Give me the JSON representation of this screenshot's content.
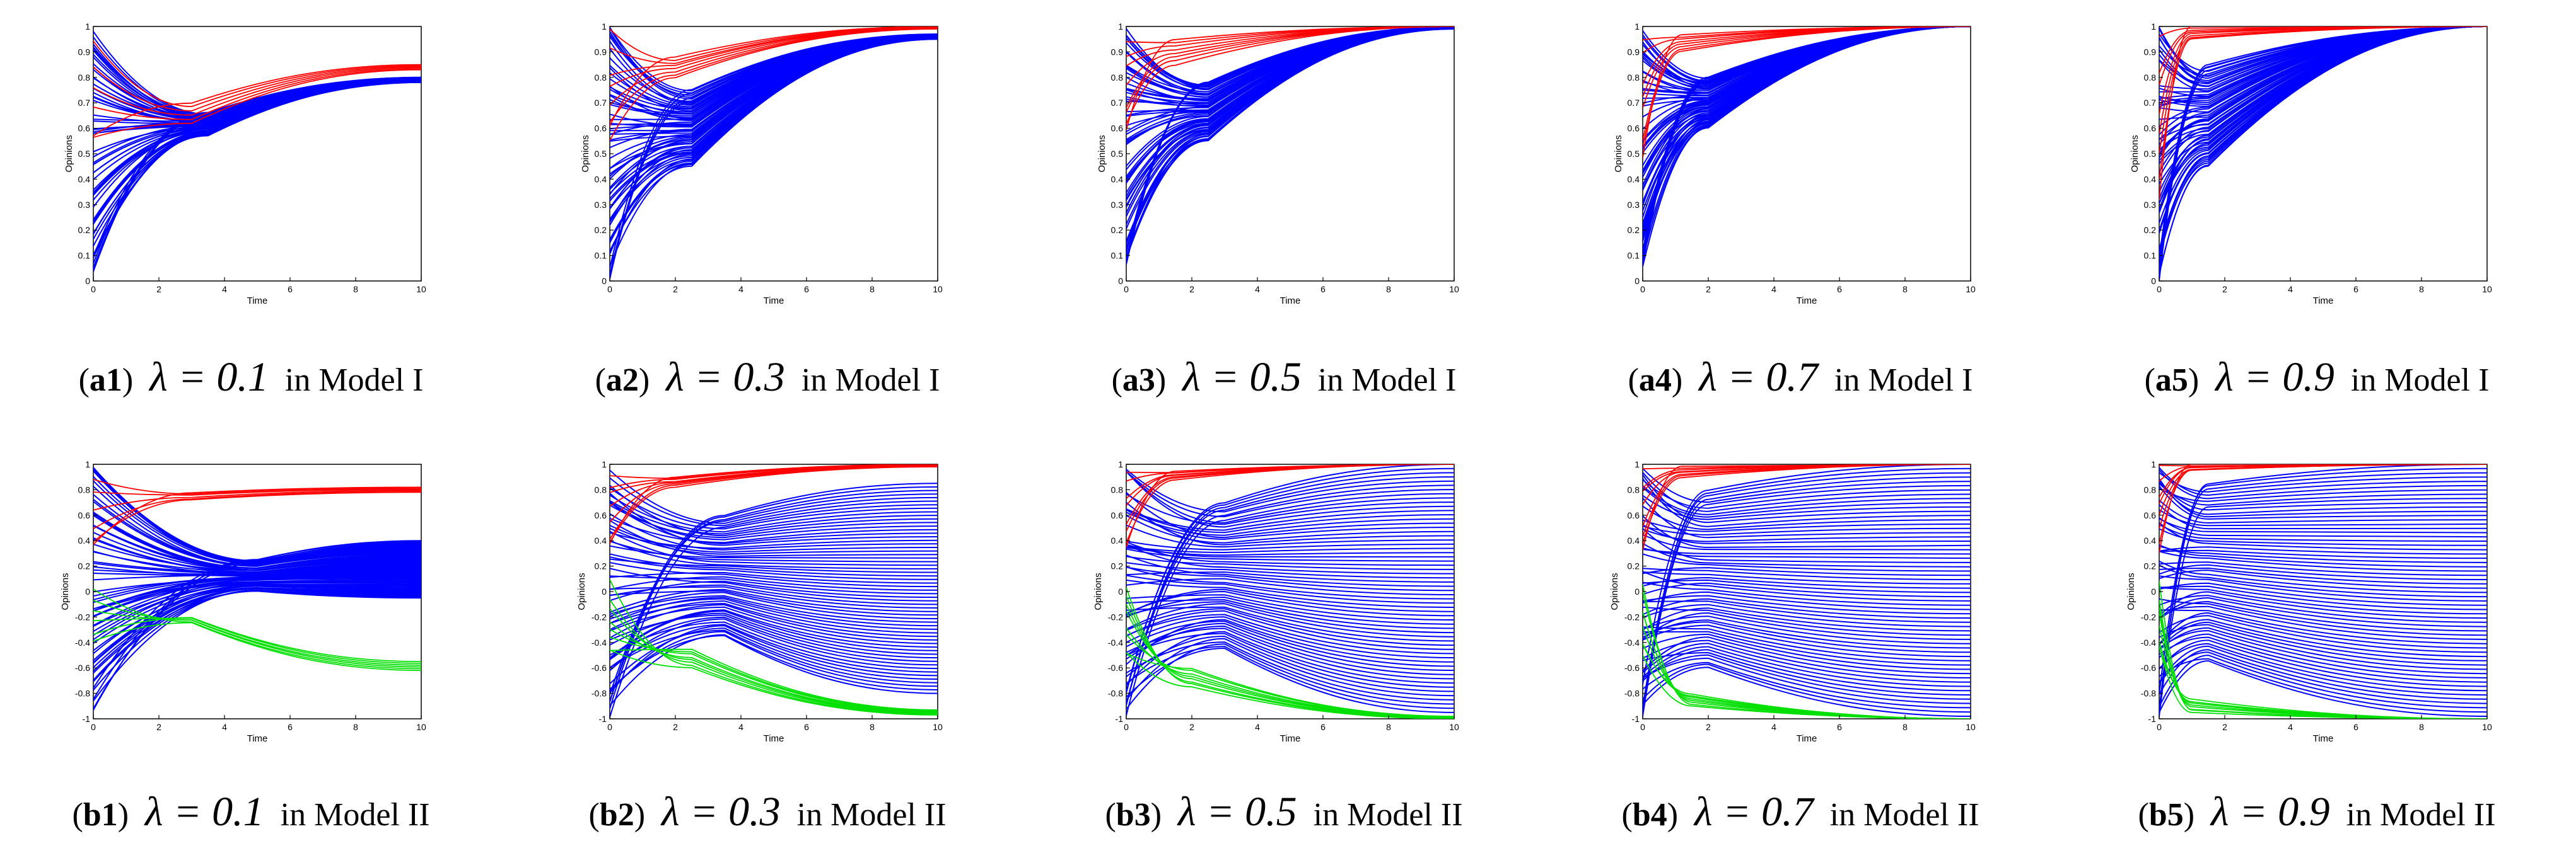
{
  "figure": {
    "layout": "2 rows x 5 columns of opinion-dynamics line plots with captions",
    "colors": {
      "background": "#ffffff",
      "axis": "#000000",
      "series_red": "#ff0000",
      "series_blue": "#0000ff",
      "series_green": "#00e000"
    }
  },
  "chart_data": [
    {
      "id": "a1",
      "type": "line",
      "model": "Model I",
      "caption": {
        "tag": "a1",
        "lambda": "λ = 0.1",
        "suffix": "in Model I"
      },
      "xlabel": "Time",
      "ylabel": "Opinions",
      "xlim": [
        0,
        10
      ],
      "ylim": [
        0,
        1
      ],
      "xticks": [
        "0",
        "2",
        "4",
        "6",
        "8",
        "10"
      ],
      "yticks": [
        "0",
        "0.1",
        "0.2",
        "0.3",
        "0.4",
        "0.5",
        "0.6",
        "0.7",
        "0.8",
        "0.9",
        "1"
      ],
      "series": [
        {
          "name": "red",
          "color": "#ff0000",
          "count": 6,
          "t": [
            0,
            3,
            10
          ],
          "start": [
            0.56,
            1.0
          ],
          "mid": [
            0.62,
            0.7
          ],
          "end": [
            0.83,
            0.85
          ]
        },
        {
          "name": "blue",
          "color": "#0000ff",
          "count": 60,
          "t": [
            0,
            3.5,
            10
          ],
          "start": [
            0.02,
            1.0
          ],
          "mid": [
            0.57,
            0.66
          ],
          "end": [
            0.78,
            0.8
          ]
        }
      ]
    },
    {
      "id": "a2",
      "type": "line",
      "model": "Model I",
      "caption": {
        "tag": "a2",
        "lambda": "λ = 0.3",
        "suffix": "in Model I"
      },
      "xlabel": "Time",
      "ylabel": "Opinions",
      "xlim": [
        0,
        10
      ],
      "ylim": [
        0,
        1
      ],
      "xticks": [
        "0",
        "2",
        "4",
        "6",
        "8",
        "10"
      ],
      "yticks": [
        "0",
        "0.1",
        "0.2",
        "0.3",
        "0.4",
        "0.5",
        "0.6",
        "0.7",
        "0.8",
        "0.9",
        "1"
      ],
      "series": [
        {
          "name": "red",
          "color": "#ff0000",
          "count": 8,
          "t": [
            0,
            2,
            10
          ],
          "start": [
            0.55,
            1.0
          ],
          "mid": [
            0.8,
            0.88
          ],
          "end": [
            0.99,
            1.0
          ]
        },
        {
          "name": "blue",
          "color": "#0000ff",
          "count": 60,
          "t": [
            0,
            2.5,
            10
          ],
          "start": [
            0.0,
            1.0
          ],
          "mid": [
            0.45,
            0.75
          ],
          "end": [
            0.95,
            0.97
          ]
        }
      ]
    },
    {
      "id": "a3",
      "type": "line",
      "model": "Model I",
      "caption": {
        "tag": "a3",
        "lambda": "λ = 0.5",
        "suffix": "in Model I"
      },
      "xlabel": "Time",
      "ylabel": "Opinions",
      "xlim": [
        0,
        10
      ],
      "ylim": [
        0,
        1
      ],
      "xticks": [
        "0",
        "2",
        "4",
        "6",
        "8",
        "10"
      ],
      "yticks": [
        "0",
        "0.1",
        "0.2",
        "0.3",
        "0.4",
        "0.5",
        "0.6",
        "0.7",
        "0.8",
        "0.9",
        "1"
      ],
      "series": [
        {
          "name": "red",
          "color": "#ff0000",
          "count": 8,
          "t": [
            0,
            1.5,
            10
          ],
          "start": [
            0.55,
            1.0
          ],
          "mid": [
            0.85,
            0.95
          ],
          "end": [
            1.0,
            1.0
          ]
        },
        {
          "name": "blue",
          "color": "#0000ff",
          "count": 60,
          "t": [
            0,
            2.5,
            10
          ],
          "start": [
            0.0,
            1.0
          ],
          "mid": [
            0.55,
            0.78
          ],
          "end": [
            0.99,
            1.0
          ]
        }
      ]
    },
    {
      "id": "a4",
      "type": "line",
      "model": "Model I",
      "caption": {
        "tag": "a4",
        "lambda": "λ = 0.7",
        "suffix": "in Model I"
      },
      "xlabel": "Time",
      "ylabel": "Opinions",
      "xlim": [
        0,
        10
      ],
      "ylim": [
        0,
        1
      ],
      "xticks": [
        "0",
        "2",
        "4",
        "6",
        "8",
        "10"
      ],
      "yticks": [
        "0",
        "0.1",
        "0.2",
        "0.3",
        "0.4",
        "0.5",
        "0.6",
        "0.7",
        "0.8",
        "0.9",
        "1"
      ],
      "series": [
        {
          "name": "red",
          "color": "#ff0000",
          "count": 8,
          "t": [
            0,
            1.2,
            10
          ],
          "start": [
            0.45,
            1.0
          ],
          "mid": [
            0.9,
            0.97
          ],
          "end": [
            1.0,
            1.0
          ]
        },
        {
          "name": "blue",
          "color": "#0000ff",
          "count": 60,
          "t": [
            0,
            2.0,
            10
          ],
          "start": [
            0.0,
            1.0
          ],
          "mid": [
            0.6,
            0.8
          ],
          "end": [
            1.0,
            1.0
          ]
        }
      ]
    },
    {
      "id": "a5",
      "type": "line",
      "model": "Model I",
      "caption": {
        "tag": "a5",
        "lambda": "λ = 0.9",
        "suffix": "in Model I"
      },
      "xlabel": "Time",
      "ylabel": "Opinions",
      "xlim": [
        0,
        10
      ],
      "ylim": [
        0,
        1
      ],
      "xticks": [
        "0",
        "2",
        "4",
        "6",
        "8",
        "10"
      ],
      "yticks": [
        "0",
        "0.1",
        "0.2",
        "0.3",
        "0.4",
        "0.5",
        "0.6",
        "0.7",
        "0.8",
        "0.9",
        "1"
      ],
      "series": [
        {
          "name": "red",
          "color": "#ff0000",
          "count": 8,
          "t": [
            0,
            1.0,
            10
          ],
          "start": [
            0.3,
            1.0
          ],
          "mid": [
            0.95,
            1.0
          ],
          "end": [
            1.0,
            1.0
          ]
        },
        {
          "name": "blue",
          "color": "#0000ff",
          "count": 60,
          "t": [
            0,
            1.5,
            10
          ],
          "start": [
            0.0,
            1.0
          ],
          "mid": [
            0.45,
            0.85
          ],
          "end": [
            1.0,
            1.0
          ]
        }
      ]
    },
    {
      "id": "b1",
      "type": "line",
      "model": "Model II",
      "caption": {
        "tag": "b1",
        "lambda": "λ = 0.1",
        "suffix": "in Model II"
      },
      "xlabel": "Time",
      "ylabel": "Opinions",
      "xlim": [
        0,
        10
      ],
      "ylim": [
        -1,
        1
      ],
      "xticks": [
        "0",
        "2",
        "4",
        "6",
        "8",
        "10"
      ],
      "yticks": [
        "-1",
        "-0.8",
        "-0.6",
        "-0.4",
        "-0.2",
        "0",
        "0.2",
        "0.4",
        "0.6",
        "0.8",
        "1"
      ],
      "series": [
        {
          "name": "red",
          "color": "#ff0000",
          "count": 6,
          "t": [
            0,
            3,
            10
          ],
          "start": [
            0.3,
            1.0
          ],
          "mid": [
            0.72,
            0.78
          ],
          "end": [
            0.78,
            0.82
          ]
        },
        {
          "name": "blue",
          "color": "#0000ff",
          "count": 60,
          "t": [
            0,
            5,
            10
          ],
          "start": [
            -1.0,
            1.0
          ],
          "mid": [
            0.0,
            0.25
          ],
          "end": [
            -0.05,
            0.4
          ]
        },
        {
          "name": "green",
          "color": "#00e000",
          "count": 6,
          "t": [
            0,
            3,
            10
          ],
          "start": [
            -0.4,
            0.1
          ],
          "mid": [
            -0.2,
            -0.25
          ],
          "end": [
            -0.55,
            -0.62
          ]
        }
      ]
    },
    {
      "id": "b2",
      "type": "line",
      "model": "Model II",
      "caption": {
        "tag": "b2",
        "lambda": "λ = 0.3",
        "suffix": "in Model II"
      },
      "xlabel": "Time",
      "ylabel": "Opinions",
      "xlim": [
        0,
        10
      ],
      "ylim": [
        -1,
        1
      ],
      "xticks": [
        "0",
        "2",
        "4",
        "6",
        "8",
        "10"
      ],
      "yticks": [
        "-1",
        "-0.8",
        "-0.6",
        "-0.4",
        "-0.2",
        "0",
        "0.2",
        "0.4",
        "0.6",
        "0.8",
        "1"
      ],
      "series": [
        {
          "name": "red",
          "color": "#ff0000",
          "count": 8,
          "t": [
            0,
            2,
            10
          ],
          "start": [
            0.3,
            1.0
          ],
          "mid": [
            0.82,
            0.9
          ],
          "end": [
            0.98,
            1.0
          ]
        },
        {
          "name": "blue",
          "color": "#0000ff",
          "count": 60,
          "t": [
            0,
            3.5,
            10
          ],
          "start": [
            -1.0,
            1.0
          ],
          "mid": [
            -0.35,
            0.6
          ],
          "end": [
            -0.8,
            0.85
          ]
        },
        {
          "name": "green",
          "color": "#00e000",
          "count": 8,
          "t": [
            0,
            2.5,
            10
          ],
          "start": [
            -0.5,
            0.1
          ],
          "mid": [
            -0.45,
            -0.6
          ],
          "end": [
            -0.93,
            -0.97
          ]
        }
      ]
    },
    {
      "id": "b3",
      "type": "line",
      "model": "Model II",
      "caption": {
        "tag": "b3",
        "lambda": "λ = 0.5",
        "suffix": "in Model II"
      },
      "xlabel": "Time",
      "ylabel": "Opinions",
      "xlim": [
        0,
        10
      ],
      "ylim": [
        -1,
        1
      ],
      "xticks": [
        "0",
        "2",
        "4",
        "6",
        "8",
        "10"
      ],
      "yticks": [
        "-1",
        "-0.8",
        "-0.6",
        "-0.4",
        "-0.2",
        "0",
        "0.2",
        "0.4",
        "0.6",
        "0.8",
        "1"
      ],
      "series": [
        {
          "name": "red",
          "color": "#ff0000",
          "count": 8,
          "t": [
            0,
            1.5,
            10
          ],
          "start": [
            0.3,
            1.0
          ],
          "mid": [
            0.88,
            0.95
          ],
          "end": [
            1.0,
            1.0
          ]
        },
        {
          "name": "blue",
          "color": "#0000ff",
          "count": 60,
          "t": [
            0,
            3,
            10
          ],
          "start": [
            -1.0,
            1.0
          ],
          "mid": [
            -0.45,
            0.7
          ],
          "end": [
            -0.95,
            1.0
          ]
        },
        {
          "name": "green",
          "color": "#00e000",
          "count": 8,
          "t": [
            0,
            2,
            10
          ],
          "start": [
            -0.5,
            0.1
          ],
          "mid": [
            -0.6,
            -0.75
          ],
          "end": [
            -0.98,
            -1.0
          ]
        }
      ]
    },
    {
      "id": "b4",
      "type": "line",
      "model": "Model II",
      "caption": {
        "tag": "b4",
        "lambda": "λ = 0.7",
        "suffix": "in Model II"
      },
      "xlabel": "Time",
      "ylabel": "Opinions",
      "xlim": [
        0,
        10
      ],
      "ylim": [
        -1,
        1
      ],
      "xticks": [
        "0",
        "2",
        "4",
        "6",
        "8",
        "10"
      ],
      "yticks": [
        "-1",
        "-0.8",
        "-0.6",
        "-0.4",
        "-0.2",
        "0",
        "0.2",
        "0.4",
        "0.6",
        "0.8",
        "1"
      ],
      "series": [
        {
          "name": "red",
          "color": "#ff0000",
          "count": 8,
          "t": [
            0,
            1.2,
            10
          ],
          "start": [
            0.3,
            1.0
          ],
          "mid": [
            0.9,
            0.98
          ],
          "end": [
            1.0,
            1.0
          ]
        },
        {
          "name": "blue",
          "color": "#0000ff",
          "count": 60,
          "t": [
            0,
            2,
            10
          ],
          "start": [
            -1.0,
            1.0
          ],
          "mid": [
            -0.6,
            0.8
          ],
          "end": [
            -0.98,
            1.0
          ]
        },
        {
          "name": "green",
          "color": "#00e000",
          "count": 8,
          "t": [
            0,
            1.5,
            10
          ],
          "start": [
            -0.5,
            0.1
          ],
          "mid": [
            -0.8,
            -0.9
          ],
          "end": [
            -1.0,
            -1.0
          ]
        }
      ]
    },
    {
      "id": "b5",
      "type": "line",
      "model": "Model II",
      "caption": {
        "tag": "b5",
        "lambda": "λ = 0.9",
        "suffix": "in Model II"
      },
      "xlabel": "Time",
      "ylabel": "Opinions",
      "xlim": [
        0,
        10
      ],
      "ylim": [
        -1,
        1
      ],
      "xticks": [
        "0",
        "2",
        "4",
        "6",
        "8",
        "10"
      ],
      "yticks": [
        "-1",
        "-0.8",
        "-0.6",
        "-0.4",
        "-0.2",
        "0",
        "0.2",
        "0.4",
        "0.6",
        "0.8",
        "1"
      ],
      "series": [
        {
          "name": "red",
          "color": "#ff0000",
          "count": 8,
          "t": [
            0,
            1.0,
            10
          ],
          "start": [
            0.3,
            1.0
          ],
          "mid": [
            0.95,
            1.0
          ],
          "end": [
            1.0,
            1.0
          ]
        },
        {
          "name": "blue",
          "color": "#0000ff",
          "count": 60,
          "t": [
            0,
            1.5,
            10
          ],
          "start": [
            -1.0,
            1.0
          ],
          "mid": [
            -0.55,
            0.85
          ],
          "end": [
            -0.98,
            1.0
          ]
        },
        {
          "name": "green",
          "color": "#00e000",
          "count": 8,
          "t": [
            0,
            1.0,
            10
          ],
          "start": [
            -0.5,
            0.1
          ],
          "mid": [
            -0.85,
            -0.95
          ],
          "end": [
            -1.0,
            -1.0
          ]
        }
      ]
    }
  ]
}
